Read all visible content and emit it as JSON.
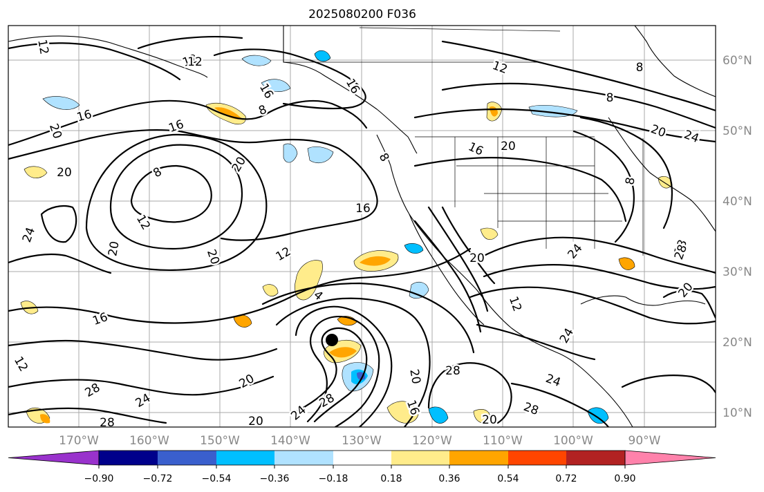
{
  "title": "2025080200 F036",
  "lat_labels": [
    "60°N",
    "50°N",
    "40°N",
    "30°N",
    "20°N",
    "10°N"
  ],
  "lon_labels": [
    "170°W",
    "160°W",
    "150°W",
    "140°W",
    "130°W",
    "120°W",
    "110°W",
    "100°W",
    "90°W"
  ],
  "colorbar": {
    "tick_labels": [
      "−0.90",
      "−0.72",
      "−0.54",
      "−0.36",
      "−0.18",
      "0.18",
      "0.36",
      "0.54",
      "0.72",
      "0.90"
    ],
    "colors": [
      "#9932cc",
      "#00008b",
      "#3a5fcd",
      "#00bfff",
      "#b0e2ff",
      "#ffffff",
      "#ffec8b",
      "#ffa500",
      "#ff4500",
      "#b22222",
      "#ff82ab"
    ]
  },
  "contour_labels": [
    "12",
    "12",
    "16",
    "16",
    "8",
    "20",
    "20",
    "8",
    "20",
    "12",
    "24",
    "20",
    "12",
    "20",
    "16",
    "16",
    "20",
    "16",
    "8",
    "12",
    "16",
    "4",
    "8",
    "24",
    "28",
    "20",
    "8",
    "20",
    "24",
    "28",
    "24",
    "28",
    "28",
    "24",
    "20",
    "24",
    "28",
    "20",
    "28",
    "12",
    "16",
    "20",
    "16",
    "28",
    "24",
    "12",
    "8",
    "20",
    "20",
    "12"
  ],
  "storm_center": "black-dot",
  "fill_colors": {
    "light_yellow": "#ffec8b",
    "orange": "#ffa500",
    "light_blue": "#b0e2ff",
    "blue": "#00bfff",
    "dark_blue": "#3a5fcd"
  }
}
